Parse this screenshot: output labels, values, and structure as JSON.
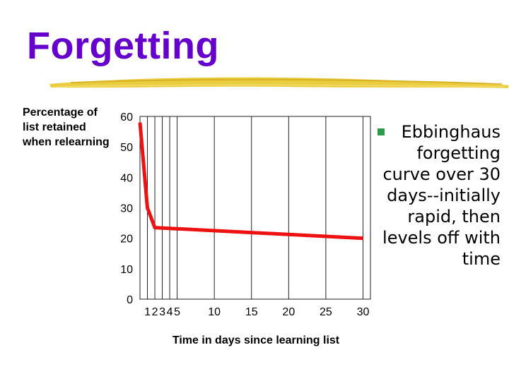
{
  "slide": {
    "title": "Forgetting",
    "bullet": "Ebbinghaus forgetting curve over 30 days--initially rapid, then levels off with time"
  },
  "colors": {
    "title": "#6600cc",
    "line": "#ee1111",
    "underline": "#e8c62a",
    "bullet_marker": "#2e9b4a"
  },
  "chart_data": {
    "type": "line",
    "title": "",
    "xlabel": "Time in days since learning list",
    "ylabel": "Percentage of list retained when relearning",
    "x_ticks": [
      "1",
      "2",
      "3",
      "4",
      "5",
      "10",
      "15",
      "20",
      "25",
      "30"
    ],
    "y_ticks": [
      "0",
      "10",
      "20",
      "30",
      "40",
      "50",
      "60"
    ],
    "xlim": [
      0,
      31
    ],
    "ylim": [
      0,
      60
    ],
    "grid": "vertical",
    "series": [
      {
        "x": [
          0,
          1,
          2,
          30
        ],
        "y": [
          58,
          30,
          23.5,
          20
        ]
      }
    ]
  }
}
